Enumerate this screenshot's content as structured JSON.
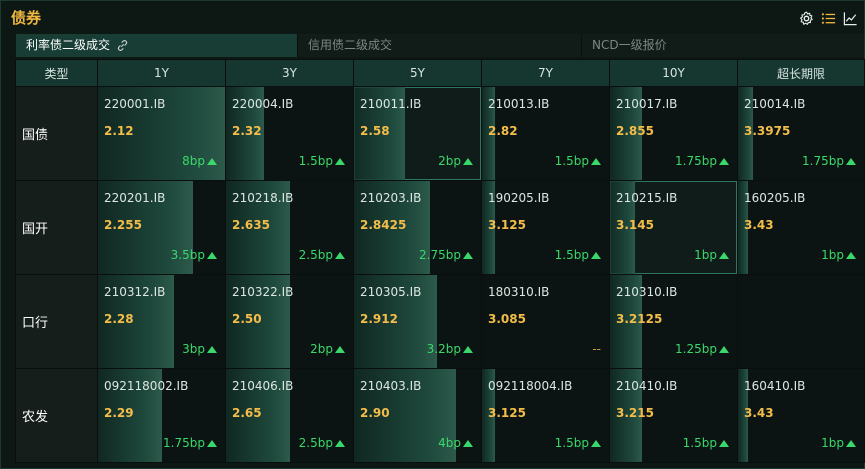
{
  "title": "债券",
  "toolbar": {
    "settings_icon": "gear-icon",
    "list_icon": "list-icon",
    "chart_icon": "line-chart-icon"
  },
  "tabs": [
    {
      "label": "利率债二级成交",
      "active": true,
      "icon": "link-icon"
    },
    {
      "label": "信用债二级成交",
      "active": false
    },
    {
      "label": "NCD一级报价",
      "active": false
    }
  ],
  "table": {
    "headers": [
      "类型",
      "1Y",
      "3Y",
      "5Y",
      "7Y",
      "10Y",
      "超长期限"
    ],
    "rows": [
      {
        "label": "国债",
        "cells": [
          {
            "code": "220001.IB",
            "yield": "2.12",
            "change": "8bp",
            "fill": 1.0,
            "highlight": false
          },
          {
            "code": "220004.IB",
            "yield": "2.32",
            "change": "1.5bp",
            "fill": 0.3,
            "highlight": false
          },
          {
            "code": "210011.IB",
            "yield": "2.58",
            "change": "2bp",
            "fill": 0.4,
            "highlight": true
          },
          {
            "code": "210013.IB",
            "yield": "2.82",
            "change": "1.5bp",
            "fill": 0.1,
            "highlight": false
          },
          {
            "code": "210017.IB",
            "yield": "2.855",
            "change": "1.75bp",
            "fill": 0.25,
            "highlight": false
          },
          {
            "code": "210014.IB",
            "yield": "3.3975",
            "change": "1.75bp",
            "fill": 0.12,
            "highlight": false
          }
        ]
      },
      {
        "label": "国开",
        "cells": [
          {
            "code": "220201.IB",
            "yield": "2.255",
            "change": "3.5bp",
            "fill": 0.75,
            "highlight": false
          },
          {
            "code": "210218.IB",
            "yield": "2.635",
            "change": "2.5bp",
            "fill": 0.5,
            "highlight": false
          },
          {
            "code": "210203.IB",
            "yield": "2.8425",
            "change": "2.75bp",
            "fill": 0.6,
            "highlight": false
          },
          {
            "code": "190205.IB",
            "yield": "3.125",
            "change": "1.5bp",
            "fill": 0.1,
            "highlight": false
          },
          {
            "code": "210215.IB",
            "yield": "3.145",
            "change": "1bp",
            "fill": 0.2,
            "highlight": true
          },
          {
            "code": "160205.IB",
            "yield": "3.43",
            "change": "1bp",
            "fill": 0.08,
            "highlight": false
          }
        ]
      },
      {
        "label": "口行",
        "cells": [
          {
            "code": "210312.IB",
            "yield": "2.28",
            "change": "3bp",
            "fill": 0.6,
            "highlight": false
          },
          {
            "code": "210322.IB",
            "yield": "2.50",
            "change": "2bp",
            "fill": 0.5,
            "highlight": false
          },
          {
            "code": "210305.IB",
            "yield": "2.912",
            "change": "3.2bp",
            "fill": 0.65,
            "highlight": false
          },
          {
            "code": "180310.IB",
            "yield": "3.085",
            "change": "--",
            "fill": 0.0,
            "highlight": false
          },
          {
            "code": "210310.IB",
            "yield": "3.2125",
            "change": "1.25bp",
            "fill": 0.25,
            "highlight": false
          },
          {
            "code": "",
            "yield": "",
            "change": "",
            "fill": 0.0,
            "highlight": false,
            "empty": true
          }
        ]
      },
      {
        "label": "农发",
        "cells": [
          {
            "code": "092118002.IB",
            "yield": "2.29",
            "change": "1.75bp",
            "fill": 0.5,
            "highlight": false
          },
          {
            "code": "210406.IB",
            "yield": "2.65",
            "change": "2.5bp",
            "fill": 0.5,
            "highlight": false
          },
          {
            "code": "210403.IB",
            "yield": "2.90",
            "change": "4bp",
            "fill": 0.8,
            "highlight": false
          },
          {
            "code": "092118004.IB",
            "yield": "3.125",
            "change": "1.5bp",
            "fill": 0.1,
            "highlight": false
          },
          {
            "code": "210410.IB",
            "yield": "3.215",
            "change": "1.5bp",
            "fill": 0.25,
            "highlight": false
          },
          {
            "code": "160410.IB",
            "yield": "3.43",
            "change": "1bp",
            "fill": 0.08,
            "highlight": false
          }
        ]
      }
    ]
  },
  "colors": {
    "title": "#f0b840",
    "yield": "#f4bd4a",
    "change_up": "#3ad86a",
    "header_bg": "#163630",
    "active_tab_bg": "#173d35"
  }
}
